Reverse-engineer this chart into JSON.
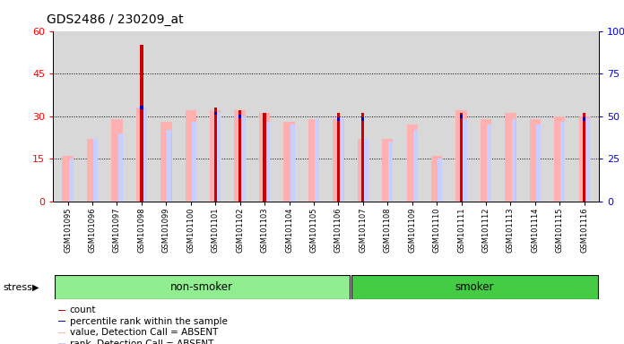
{
  "title": "GDS2486 / 230209_at",
  "samples": [
    "GSM101095",
    "GSM101096",
    "GSM101097",
    "GSM101098",
    "GSM101099",
    "GSM101100",
    "GSM101101",
    "GSM101102",
    "GSM101103",
    "GSM101104",
    "GSM101105",
    "GSM101106",
    "GSM101107",
    "GSM101108",
    "GSM101109",
    "GSM101110",
    "GSM101111",
    "GSM101112",
    "GSM101113",
    "GSM101114",
    "GSM101115",
    "GSM101116"
  ],
  "count_values": [
    0,
    0,
    0,
    55,
    0,
    0,
    33,
    32,
    31,
    0,
    0,
    31,
    31,
    0,
    0,
    0,
    31,
    0,
    0,
    0,
    0,
    31
  ],
  "value_absent": [
    16,
    22,
    29,
    33,
    28,
    32,
    32,
    32,
    31,
    28,
    29,
    29,
    22,
    22,
    27,
    16,
    32,
    29,
    31,
    29,
    30,
    30
  ],
  "rank_absent": [
    15,
    22,
    24,
    33,
    25,
    28,
    31,
    30,
    28,
    27,
    29,
    29,
    22,
    21,
    25,
    15,
    29,
    27,
    29,
    27,
    28,
    29
  ],
  "percentile_rank": [
    null,
    null,
    null,
    33,
    null,
    null,
    31,
    30,
    null,
    null,
    null,
    29,
    29,
    null,
    null,
    null,
    30,
    null,
    null,
    null,
    null,
    29
  ],
  "color_count": "#CC0000",
  "color_rank": "#0000CC",
  "color_value_absent": "#FFB0B0",
  "color_rank_absent": "#C8CEFF",
  "bg_plot": "#D8D8D8",
  "bg_nonsmoker": "#90EE90",
  "bg_smoker": "#44CC44",
  "ylim_left": [
    0,
    60
  ],
  "ylim_right": [
    0,
    100
  ],
  "yticks_left": [
    0,
    15,
    30,
    45,
    60
  ],
  "yticks_right": [
    0,
    25,
    50,
    75,
    100
  ],
  "stress_label": "stress",
  "nonsmoker_label": "non-smoker",
  "smoker_label": "smoker",
  "n_nonsmoker": 12,
  "n_smoker": 10
}
